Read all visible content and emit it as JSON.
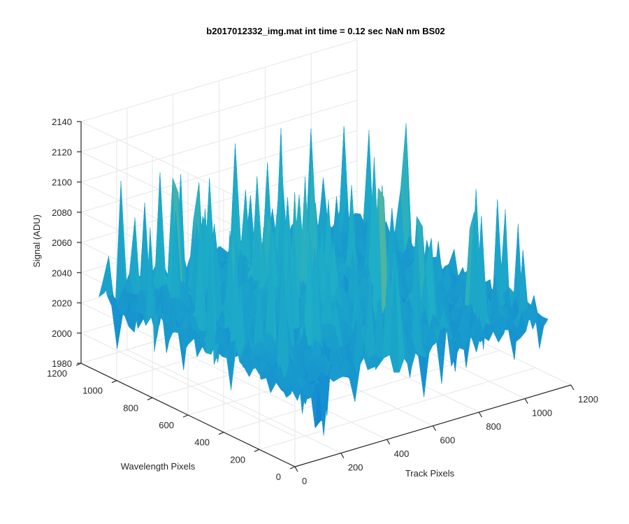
{
  "chart_data": {
    "type": "surface",
    "title": "b2017012332_img.mat int time = 0.12 sec  NaN nm BS02",
    "xlabel": "Track Pixels",
    "ylabel": "Wavelength Pixels",
    "zlabel": "Signal (ADU)",
    "x_ticks": [
      "0",
      "200",
      "400",
      "600",
      "800",
      "1000",
      "1200"
    ],
    "y_ticks": [
      "0",
      "200",
      "400",
      "600",
      "800",
      "1000",
      "1200"
    ],
    "z_ticks": [
      "1980",
      "2000",
      "2020",
      "2040",
      "2060",
      "2080",
      "2100",
      "2120",
      "2140"
    ],
    "xlim": [
      0,
      1200
    ],
    "ylim": [
      0,
      1200
    ],
    "zlim": [
      1980,
      2140
    ],
    "x_extent": [
      0,
      1100
    ],
    "y_extent": [
      0,
      1100
    ],
    "baseline_signal": 2030,
    "peak_signal": 2135,
    "min_signal": 1990,
    "colormap": "parula",
    "grid": true,
    "colors": {
      "low": "#0f77d8",
      "mid": "#1eaec7",
      "high": "#d8c443",
      "axis": "#262626",
      "grid": "#e6e6e6"
    }
  }
}
